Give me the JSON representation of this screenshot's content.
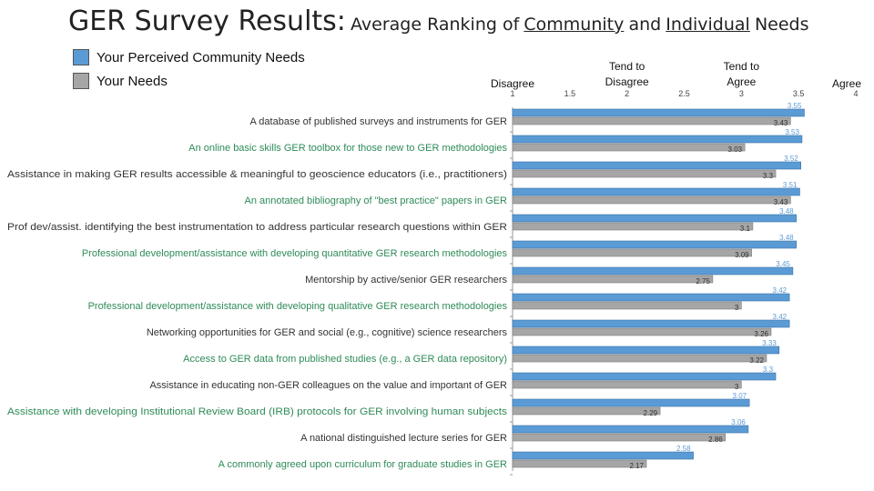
{
  "title": {
    "main": "GER Survey Results:",
    "sub_prefix": "Average Ranking of",
    "sub_word1": "Community",
    "sub_and": "and",
    "sub_word2": "Individual",
    "sub_suffix": "Needs"
  },
  "legend": [
    {
      "label": "Your Perceived Community Needs",
      "color": "#5b9bd5"
    },
    {
      "label": "Your Needs",
      "color": "#a6a6a6"
    }
  ],
  "chart_data": {
    "type": "bar",
    "orientation": "horizontal",
    "title": "GER Survey Results: Average Ranking of Community and Individual Needs",
    "xlim": [
      1,
      4
    ],
    "ticks": [
      {
        "value": 1,
        "label": "1",
        "heading": "Disagree"
      },
      {
        "value": 1.5,
        "label": "1.5",
        "heading": ""
      },
      {
        "value": 2,
        "label": "2",
        "heading": "Tend to Disagree"
      },
      {
        "value": 2.5,
        "label": "2.5",
        "heading": ""
      },
      {
        "value": 3,
        "label": "3",
        "heading": "Tend to Agree"
      },
      {
        "value": 3.5,
        "label": "3.5",
        "heading": ""
      },
      {
        "value": 4,
        "label": "4",
        "heading": "Agree"
      }
    ],
    "categories": [
      {
        "label": "A database of published surveys and instruments for GER",
        "color": "#333333"
      },
      {
        "label": "An online basic skills GER toolbox for those new to GER methodologies",
        "color": "#2e8b57"
      },
      {
        "label": "Assistance in making GER results accessible & meaningful to geoscience educators (i.e., practitioners)",
        "color": "#333333"
      },
      {
        "label": "An annotated bibliography of \"best practice\" papers in GER",
        "color": "#2e8b57"
      },
      {
        "label": "Prof dev/assist. identifying the best instrumentation to address particular research questions within GER",
        "color": "#333333"
      },
      {
        "label": "Professional development/assistance with developing quantitative GER research methodologies",
        "color": "#2e8b57"
      },
      {
        "label": "Mentorship by active/senior GER researchers",
        "color": "#333333"
      },
      {
        "label": "Professional development/assistance with developing qualitative GER research methodologies",
        "color": "#2e8b57"
      },
      {
        "label": "Networking opportunities for GER and social (e.g., cognitive) science researchers",
        "color": "#333333"
      },
      {
        "label": "Access to GER data from published studies (e.g., a GER data repository)",
        "color": "#2e8b57"
      },
      {
        "label": "Assistance in educating non-GER colleagues on the value and important of GER",
        "color": "#333333"
      },
      {
        "label": "Assistance with developing Institutional Review Board (IRB) protocols for GER involving human subjects",
        "color": "#2e8b57"
      },
      {
        "label": "A national distinguished lecture series for GER",
        "color": "#333333"
      },
      {
        "label": "A commonly agreed upon curriculum for graduate studies in GER",
        "color": "#2e8b57"
      }
    ],
    "series": [
      {
        "name": "Your Perceived Community Needs",
        "color": "#5b9bd5",
        "values": [
          3.55,
          3.53,
          3.52,
          3.51,
          3.48,
          3.48,
          3.45,
          3.42,
          3.42,
          3.33,
          3.3,
          3.07,
          3.06,
          2.58
        ]
      },
      {
        "name": "Your Needs",
        "color": "#a6a6a6",
        "values": [
          3.43,
          3.03,
          3.3,
          3.43,
          3.1,
          3.09,
          2.75,
          3,
          3.26,
          3.22,
          3,
          2.29,
          2.86,
          2.17
        ]
      }
    ]
  }
}
